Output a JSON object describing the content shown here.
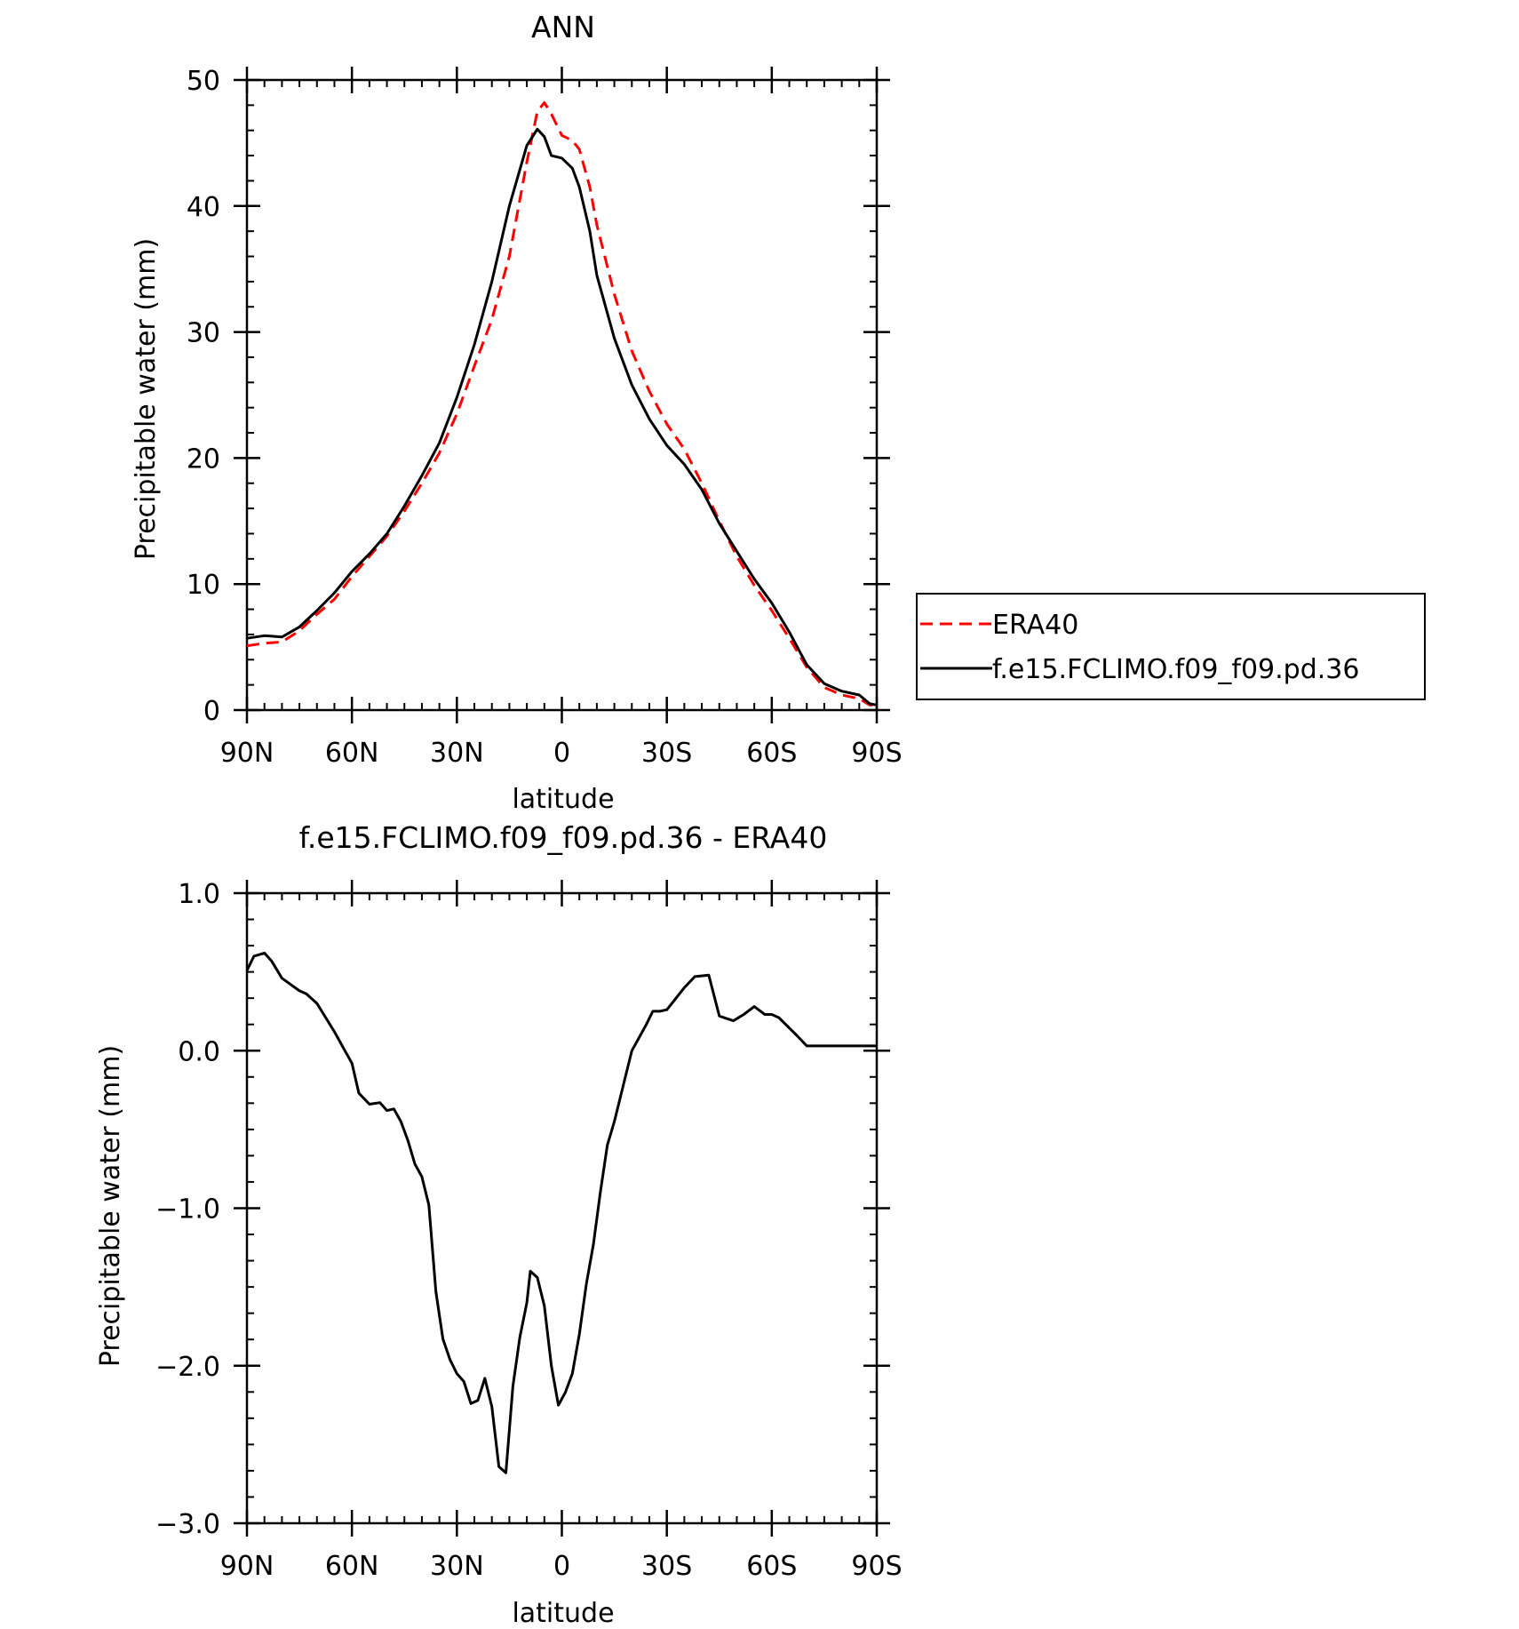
{
  "chart_data": [
    {
      "type": "line",
      "title": "ANN",
      "xlabel": "latitude",
      "ylabel": "Precipitable water (mm)",
      "xlim": [
        90,
        -90
      ],
      "ylim": [
        0,
        50
      ],
      "x_tick_values": [
        90,
        60,
        30,
        0,
        -30,
        -60,
        -90
      ],
      "x_tick_labels": [
        "90N",
        "60N",
        "30N",
        "0",
        "30S",
        "60S",
        "90S"
      ],
      "y_tick_values": [
        0,
        10,
        20,
        30,
        40,
        50
      ],
      "y_tick_labels": [
        "0",
        "10",
        "20",
        "30",
        "40",
        "50"
      ],
      "grid": false,
      "legend": {
        "position": "right",
        "entries": [
          "ERA40",
          "f.e15.FCLIMO.f09_f09.pd.36"
        ]
      },
      "series": [
        {
          "name": "ERA40",
          "color": "#ff0000",
          "dash": "dashed",
          "x": [
            90,
            85,
            80,
            75,
            70,
            65,
            60,
            55,
            50,
            45,
            40,
            35,
            30,
            25,
            20,
            15,
            10,
            7,
            5,
            3,
            0,
            -3,
            -5,
            -8,
            -10,
            -15,
            -20,
            -25,
            -30,
            -35,
            -40,
            -45,
            -50,
            -55,
            -60,
            -65,
            -70,
            -75,
            -80,
            -85,
            -88,
            -90
          ],
          "y": [
            5.1,
            5.3,
            5.4,
            6.3,
            7.6,
            8.8,
            10.6,
            12.2,
            13.8,
            15.8,
            18.0,
            20.4,
            23.5,
            27.3,
            31.0,
            36.0,
            43.5,
            47.5,
            48.2,
            47.3,
            45.6,
            45.2,
            44.5,
            41.5,
            38.5,
            33.0,
            28.5,
            25.3,
            22.7,
            20.7,
            18.0,
            15.0,
            12.2,
            9.9,
            7.9,
            5.7,
            3.4,
            1.8,
            1.2,
            0.9,
            0.4,
            0.4
          ]
        },
        {
          "name": "f.e15.FCLIMO.f09_f09.pd.36",
          "color": "#000000",
          "dash": "solid",
          "x": [
            90,
            85,
            80,
            75,
            70,
            65,
            60,
            55,
            50,
            45,
            40,
            35,
            30,
            25,
            20,
            15,
            10,
            7,
            5,
            3,
            0,
            -3,
            -5,
            -8,
            -10,
            -15,
            -20,
            -25,
            -30,
            -35,
            -40,
            -45,
            -50,
            -55,
            -60,
            -65,
            -70,
            -75,
            -80,
            -85,
            -88,
            -90
          ],
          "y": [
            5.7,
            5.9,
            5.8,
            6.6,
            7.9,
            9.3,
            11.0,
            12.4,
            14.0,
            16.2,
            18.6,
            21.2,
            24.8,
            29.0,
            34.0,
            40.0,
            44.8,
            46.1,
            45.5,
            44.0,
            43.8,
            43.0,
            41.5,
            38.0,
            34.5,
            29.5,
            25.8,
            23.1,
            21.0,
            19.5,
            17.5,
            14.8,
            12.6,
            10.4,
            8.5,
            6.2,
            3.6,
            2.1,
            1.5,
            1.2,
            0.5,
            0.4
          ]
        }
      ]
    },
    {
      "type": "line",
      "title": "f.e15.FCLIMO.f09_f09.pd.36 - ERA40",
      "xlabel": "latitude",
      "ylabel": "Precipitable water (mm)",
      "xlim": [
        90,
        -90
      ],
      "ylim": [
        -3.0,
        1.0
      ],
      "x_tick_values": [
        90,
        60,
        30,
        0,
        -30,
        -60,
        -90
      ],
      "x_tick_labels": [
        "90N",
        "60N",
        "30N",
        "0",
        "30S",
        "60S",
        "90S"
      ],
      "y_tick_values": [
        -3.0,
        -2.0,
        -1.0,
        0.0,
        1.0
      ],
      "y_tick_labels": [
        "−3.0",
        "−2.0",
        "−1.0",
        "0.0",
        "1.0"
      ],
      "grid": false,
      "series": [
        {
          "color": "#000000",
          "dash": "solid",
          "x": [
            90,
            88,
            85,
            83,
            80,
            75,
            73,
            70,
            65,
            62,
            60,
            58,
            55,
            52,
            50,
            48,
            46,
            44,
            42,
            40,
            38,
            36,
            34,
            32,
            30,
            28,
            26,
            24,
            22,
            20,
            18,
            16,
            14,
            12,
            10,
            9,
            7,
            5,
            3,
            1,
            -1,
            -3,
            -5,
            -7,
            -9,
            -11,
            -13,
            -15,
            -18,
            -20,
            -24,
            -26,
            -28,
            -30,
            -35,
            -38,
            -42,
            -45,
            -49,
            -52,
            -55,
            -58,
            -60,
            -62,
            -67,
            -70,
            -73,
            -75,
            -77,
            -80,
            -83,
            -85,
            -87,
            -89,
            -90
          ],
          "y": [
            0.51,
            0.6,
            0.62,
            0.57,
            0.46,
            0.38,
            0.36,
            0.3,
            0.12,
            0.0,
            -0.08,
            -0.27,
            -0.34,
            -0.33,
            -0.38,
            -0.37,
            -0.45,
            -0.57,
            -0.72,
            -0.8,
            -0.98,
            -1.53,
            -1.83,
            -1.96,
            -2.05,
            -2.1,
            -2.24,
            -2.22,
            -2.08,
            -2.26,
            -2.64,
            -2.68,
            -2.13,
            -1.82,
            -1.6,
            -1.4,
            -1.44,
            -1.62,
            -2.0,
            -2.25,
            -2.17,
            -2.05,
            -1.8,
            -1.48,
            -1.23,
            -0.9,
            -0.6,
            -0.45,
            -0.18,
            0.0,
            0.16,
            0.25,
            0.25,
            0.26,
            0.4,
            0.47,
            0.48,
            0.22,
            0.19,
            0.23,
            0.28,
            0.23,
            0.23,
            0.21,
            0.1,
            0.03,
            0.03,
            0.03,
            0.03,
            0.03,
            0.03,
            0.03,
            0.03,
            0.03,
            0.03
          ]
        }
      ]
    }
  ]
}
